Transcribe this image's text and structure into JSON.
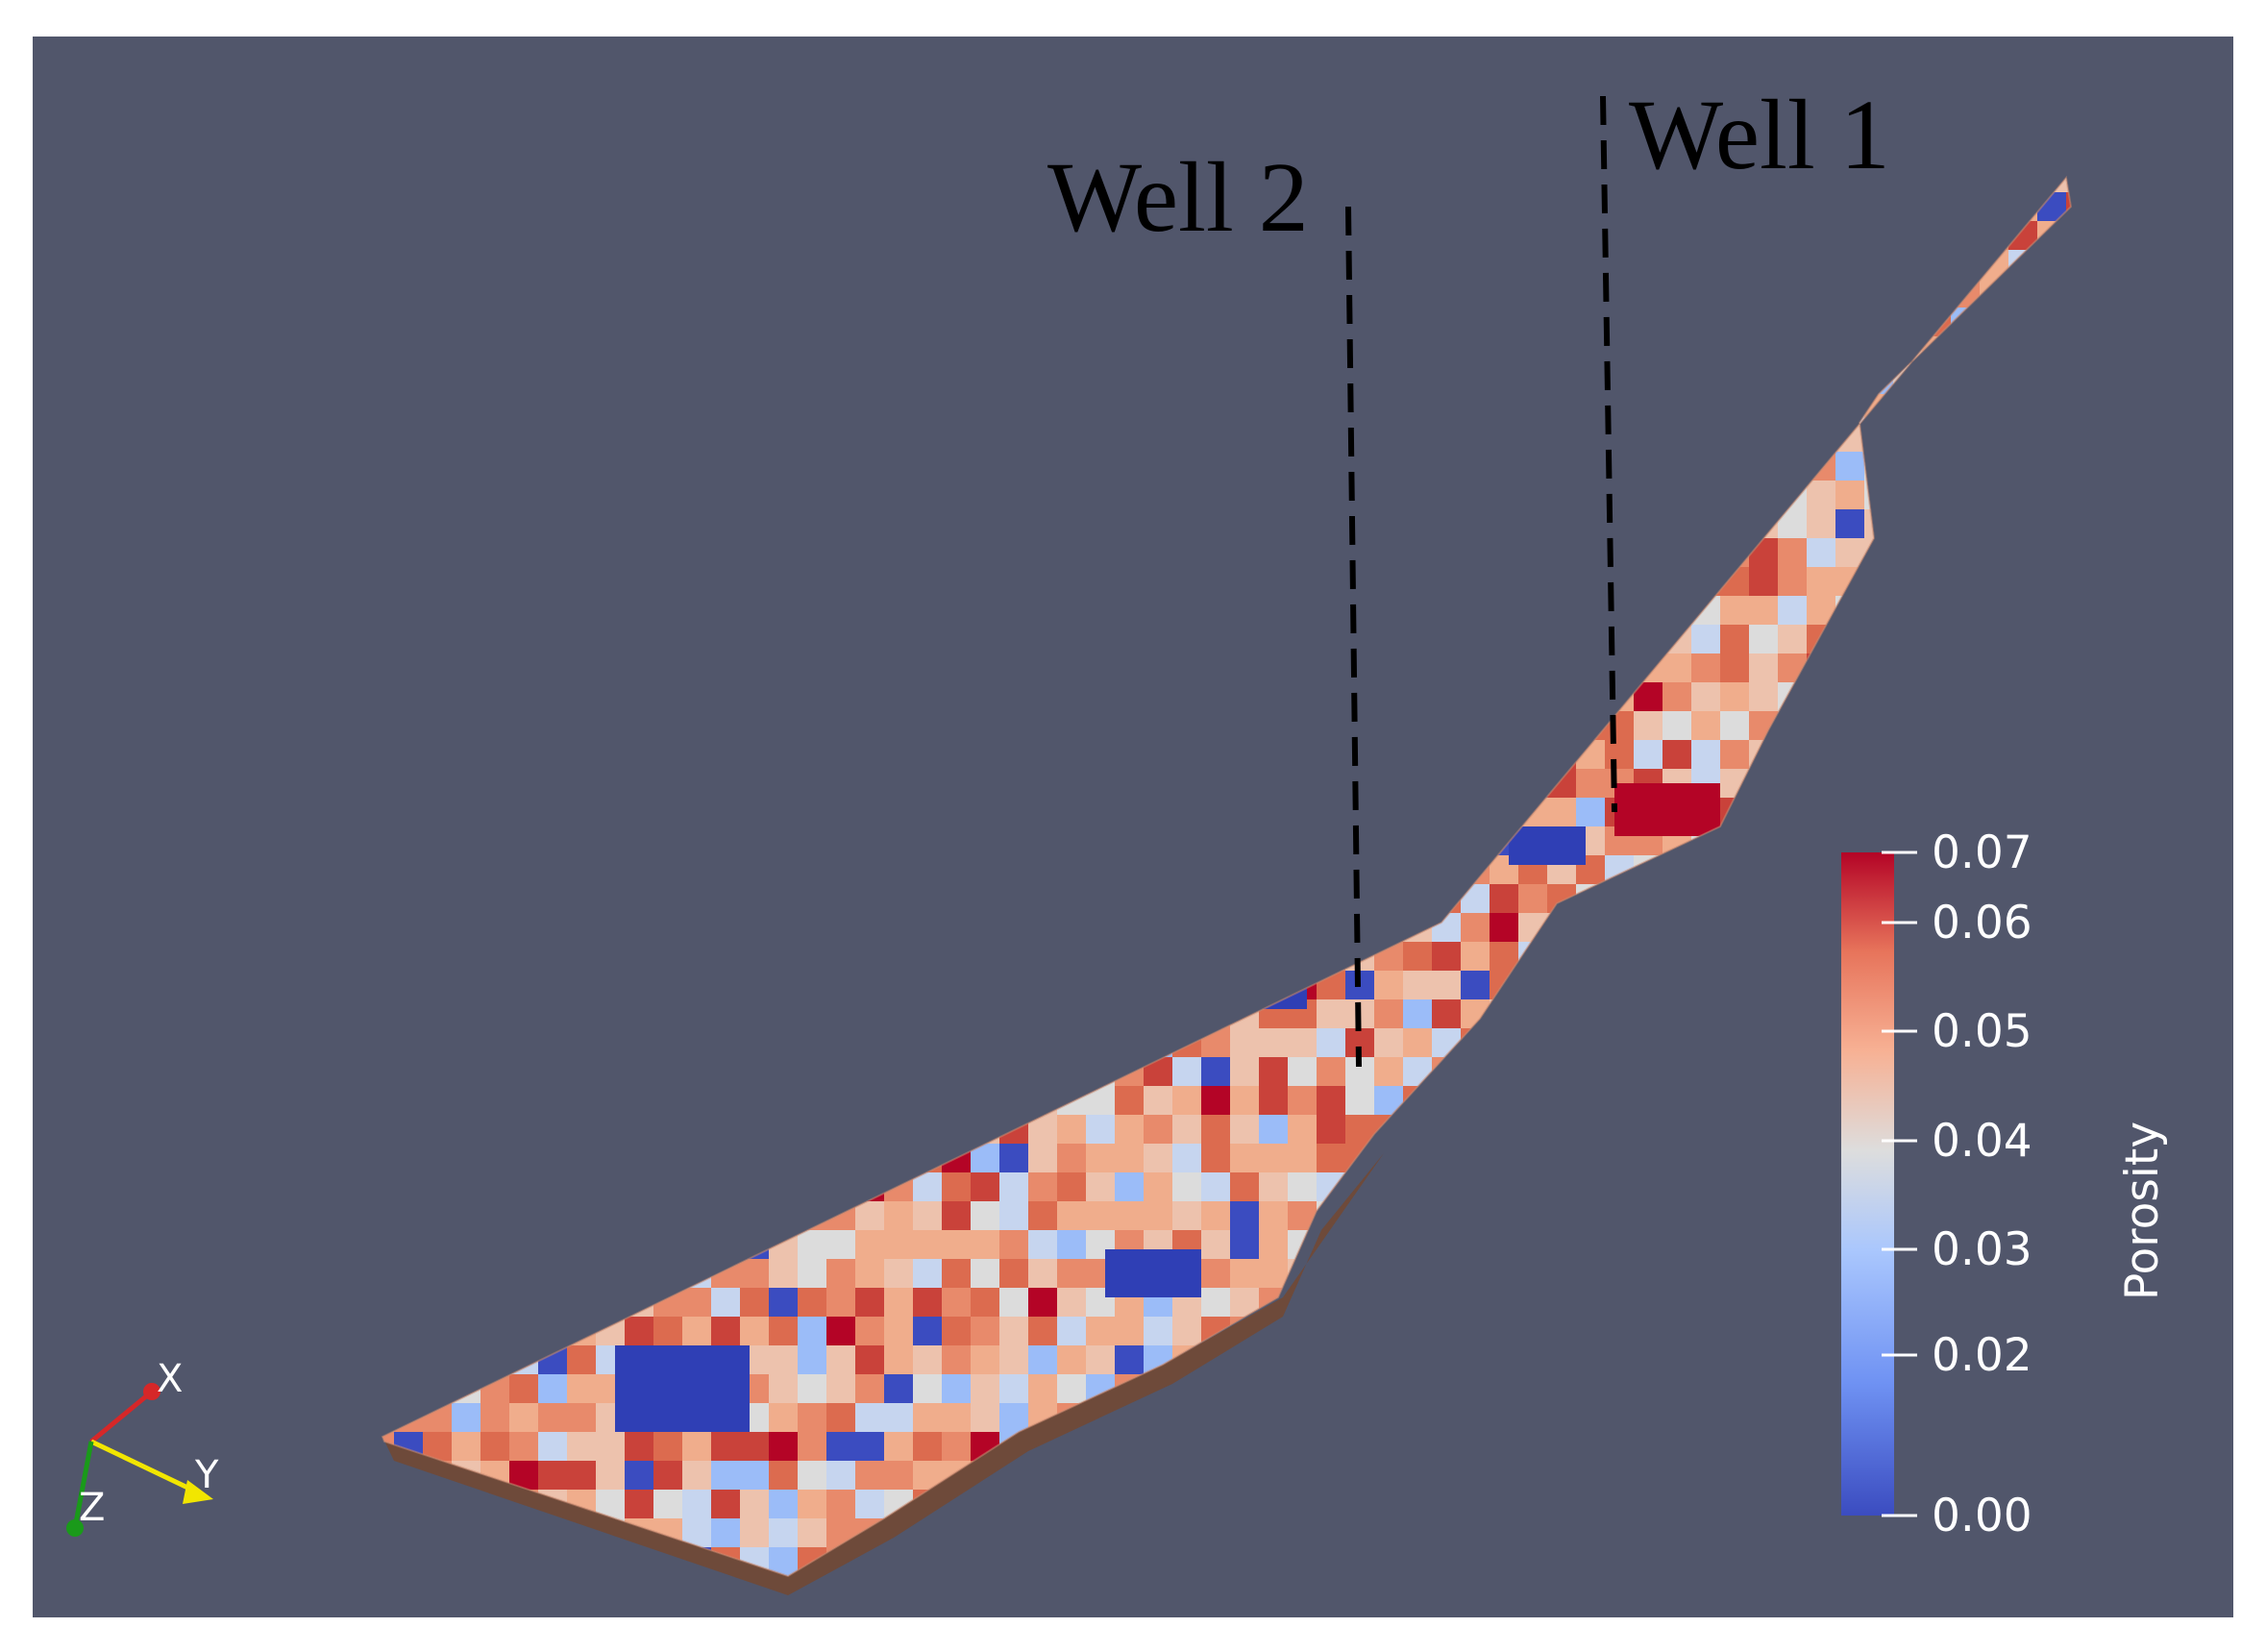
{
  "wells": [
    {
      "label": "Well 2"
    },
    {
      "label": "Well 1"
    }
  ],
  "colorbar": {
    "title": "Porosity",
    "min": 0.0,
    "max": 0.07,
    "ticks": [
      "0.07",
      "0.06",
      "0.05",
      "0.04",
      "0.03",
      "0.02",
      "0.00"
    ],
    "colors": {
      "low": "#3b4cc0",
      "mid": "#dddddd",
      "high": "#b40426"
    }
  },
  "orientation_axes": {
    "x": "X",
    "y": "Y",
    "z": "Z",
    "x_color": "#d62728",
    "y_color": "#f2e600",
    "z_color": "#1a9a1a"
  },
  "colors": {
    "background": "#51566b",
    "frame": "#ffffff"
  }
}
